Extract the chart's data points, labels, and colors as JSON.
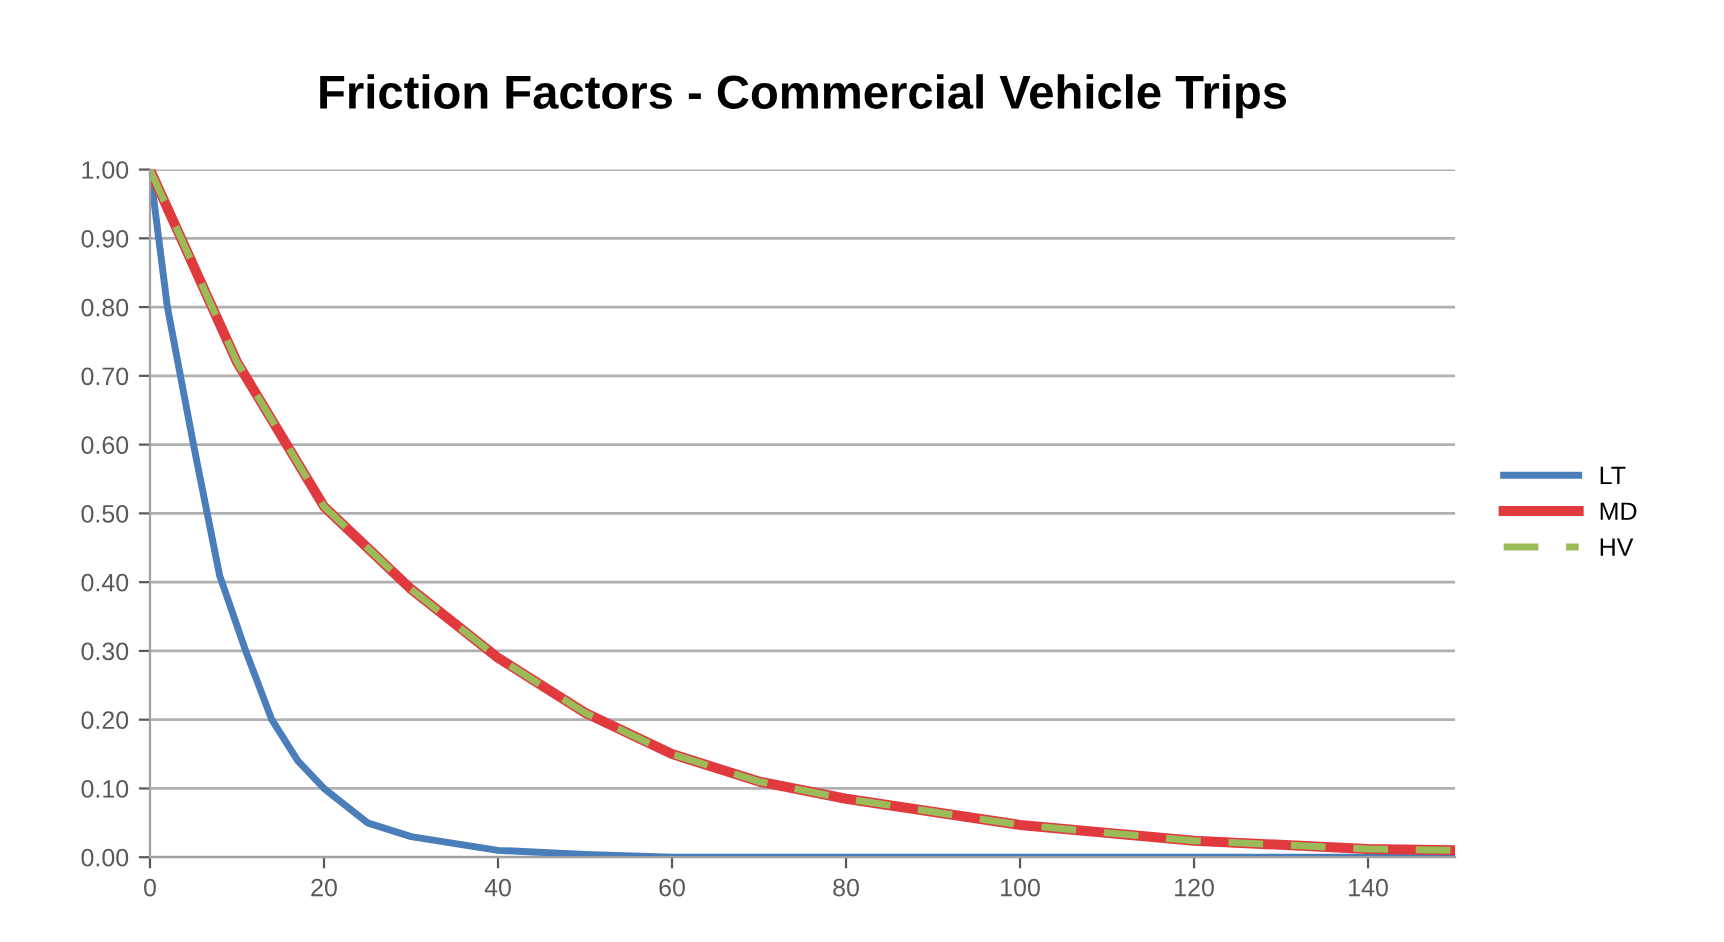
{
  "chart_data": {
    "type": "line",
    "title": "Friction Factors - Commercial Vehicle Trips",
    "xlim": [
      0,
      150
    ],
    "xticks": [
      0,
      20,
      40,
      60,
      80,
      100,
      120,
      140
    ],
    "ylim": [
      0,
      1
    ],
    "yticks": [
      {
        "value": 0,
        "label": "0.00"
      },
      {
        "value": 0.1,
        "label": "0.10"
      },
      {
        "value": 0.2,
        "label": "0.20"
      },
      {
        "value": 0.3,
        "label": "0.30"
      },
      {
        "value": 0.4,
        "label": "0.40"
      },
      {
        "value": 0.5,
        "label": "0.50"
      },
      {
        "value": 0.6,
        "label": "0.60"
      },
      {
        "value": 0.7,
        "label": "0.70"
      },
      {
        "value": 0.8,
        "label": "0.80"
      },
      {
        "value": 0.9,
        "label": "0.90"
      },
      {
        "value": 1,
        "label": "1.00"
      }
    ],
    "grid": "y",
    "legend": "right",
    "marker": "none",
    "series": [
      {
        "name": "LT",
        "color": "#4a7ebb",
        "line_style": "solid",
        "x": [
          0,
          2,
          5,
          8,
          11,
          14,
          17,
          20,
          25,
          30,
          40,
          50,
          60,
          150
        ],
        "values": [
          1.0,
          0.8,
          0.6,
          0.41,
          0.3,
          0.2,
          0.14,
          0.1,
          0.05,
          0.03,
          0.01,
          0.004,
          0.0,
          0.0
        ]
      },
      {
        "name": "MD",
        "color": "#e0393e",
        "line_style": "solid",
        "x": [
          0,
          10,
          20,
          30,
          40,
          50,
          60,
          70,
          80,
          100,
          120,
          140,
          150
        ],
        "values": [
          1.0,
          0.72,
          0.51,
          0.39,
          0.29,
          0.21,
          0.15,
          0.11,
          0.085,
          0.047,
          0.024,
          0.012,
          0.01
        ]
      },
      {
        "name": "HV",
        "color": "#9bbb59",
        "line_style": "dashed",
        "x": [
          0,
          10,
          20,
          30,
          40,
          50,
          60,
          70,
          80,
          100,
          120,
          140,
          150
        ],
        "values": [
          1.0,
          0.72,
          0.51,
          0.39,
          0.29,
          0.21,
          0.15,
          0.11,
          0.085,
          0.047,
          0.024,
          0.012,
          0.01
        ]
      }
    ]
  }
}
